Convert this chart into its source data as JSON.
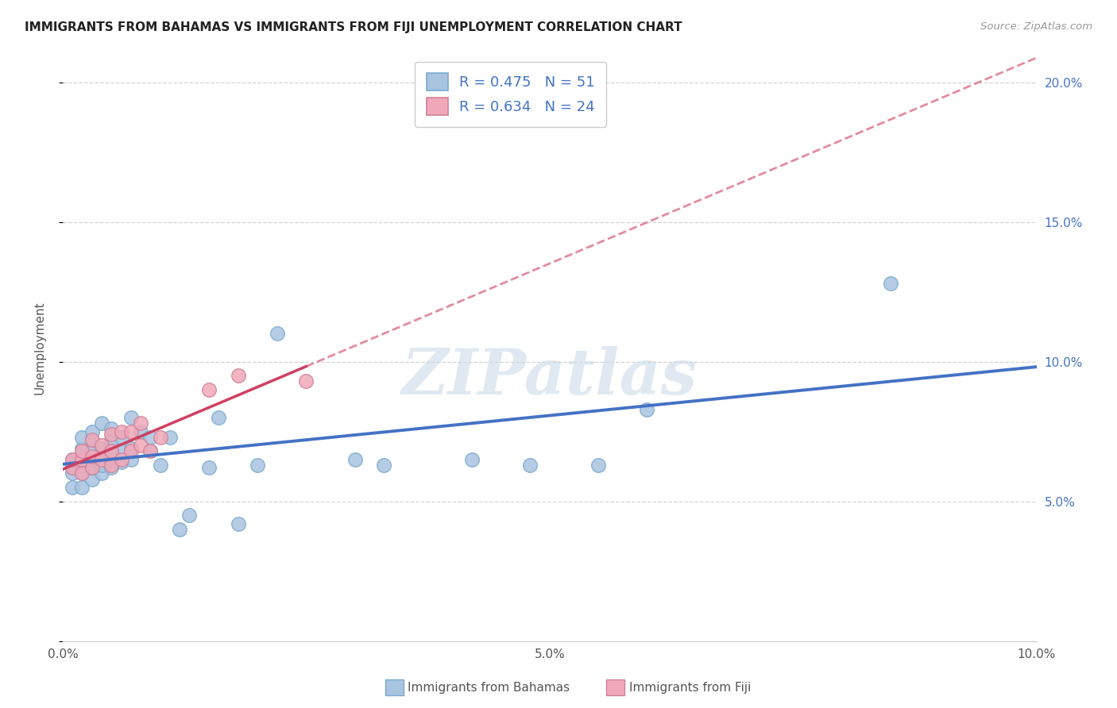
{
  "title": "IMMIGRANTS FROM BAHAMAS VS IMMIGRANTS FROM FIJI UNEMPLOYMENT CORRELATION CHART",
  "source": "Source: ZipAtlas.com",
  "ylabel": "Unemployment",
  "x_min": 0.0,
  "x_max": 0.1,
  "y_min": 0.0,
  "y_max": 0.21,
  "x_ticks": [
    0.0,
    0.01,
    0.02,
    0.03,
    0.04,
    0.05,
    0.06,
    0.07,
    0.08,
    0.09,
    0.1
  ],
  "x_tick_labels": [
    "0.0%",
    "",
    "",
    "",
    "",
    "5.0%",
    "",
    "",
    "",
    "",
    "10.0%"
  ],
  "y_ticks": [
    0.0,
    0.05,
    0.1,
    0.15,
    0.2
  ],
  "y_tick_labels_right": [
    "",
    "5.0%",
    "10.0%",
    "15.0%",
    "20.0%"
  ],
  "bahamas_R": 0.475,
  "bahamas_N": 51,
  "fiji_R": 0.634,
  "fiji_N": 24,
  "bahamas_color": "#a8c4e0",
  "fiji_color": "#f0a8b8",
  "trendline_bahamas_color": "#4472c4",
  "trendline_fiji_color": "#d04060",
  "legend_label_bahamas": "Immigrants from Bahamas",
  "legend_label_fiji": "Immigrants from Fiji",
  "bahamas_x": [
    0.001,
    0.001,
    0.001,
    0.001,
    0.002,
    0.002,
    0.002,
    0.002,
    0.002,
    0.002,
    0.003,
    0.003,
    0.003,
    0.003,
    0.003,
    0.003,
    0.004,
    0.004,
    0.004,
    0.004,
    0.004,
    0.005,
    0.005,
    0.005,
    0.005,
    0.005,
    0.006,
    0.006,
    0.006,
    0.007,
    0.007,
    0.007,
    0.008,
    0.009,
    0.009,
    0.01,
    0.011,
    0.012,
    0.013,
    0.015,
    0.016,
    0.018,
    0.02,
    0.022,
    0.03,
    0.033,
    0.042,
    0.048,
    0.055,
    0.06,
    0.085
  ],
  "bahamas_y": [
    0.055,
    0.06,
    0.062,
    0.065,
    0.055,
    0.06,
    0.063,
    0.066,
    0.069,
    0.073,
    0.058,
    0.062,
    0.065,
    0.068,
    0.072,
    0.075,
    0.06,
    0.063,
    0.066,
    0.069,
    0.078,
    0.062,
    0.065,
    0.068,
    0.072,
    0.076,
    0.064,
    0.068,
    0.073,
    0.065,
    0.069,
    0.08,
    0.075,
    0.068,
    0.073,
    0.063,
    0.073,
    0.04,
    0.045,
    0.062,
    0.08,
    0.042,
    0.063,
    0.11,
    0.065,
    0.063,
    0.065,
    0.063,
    0.063,
    0.083,
    0.128
  ],
  "fiji_x": [
    0.001,
    0.001,
    0.002,
    0.002,
    0.002,
    0.003,
    0.003,
    0.003,
    0.004,
    0.004,
    0.005,
    0.005,
    0.005,
    0.006,
    0.006,
    0.007,
    0.007,
    0.008,
    0.008,
    0.009,
    0.01,
    0.015,
    0.018,
    0.025
  ],
  "fiji_y": [
    0.062,
    0.065,
    0.06,
    0.065,
    0.068,
    0.062,
    0.066,
    0.072,
    0.065,
    0.07,
    0.063,
    0.068,
    0.074,
    0.065,
    0.075,
    0.068,
    0.075,
    0.07,
    0.078,
    0.068,
    0.073,
    0.09,
    0.095,
    0.093
  ],
  "watermark": "ZIPatlas",
  "background_color": "#ffffff",
  "grid_color": "#d0d0d0"
}
